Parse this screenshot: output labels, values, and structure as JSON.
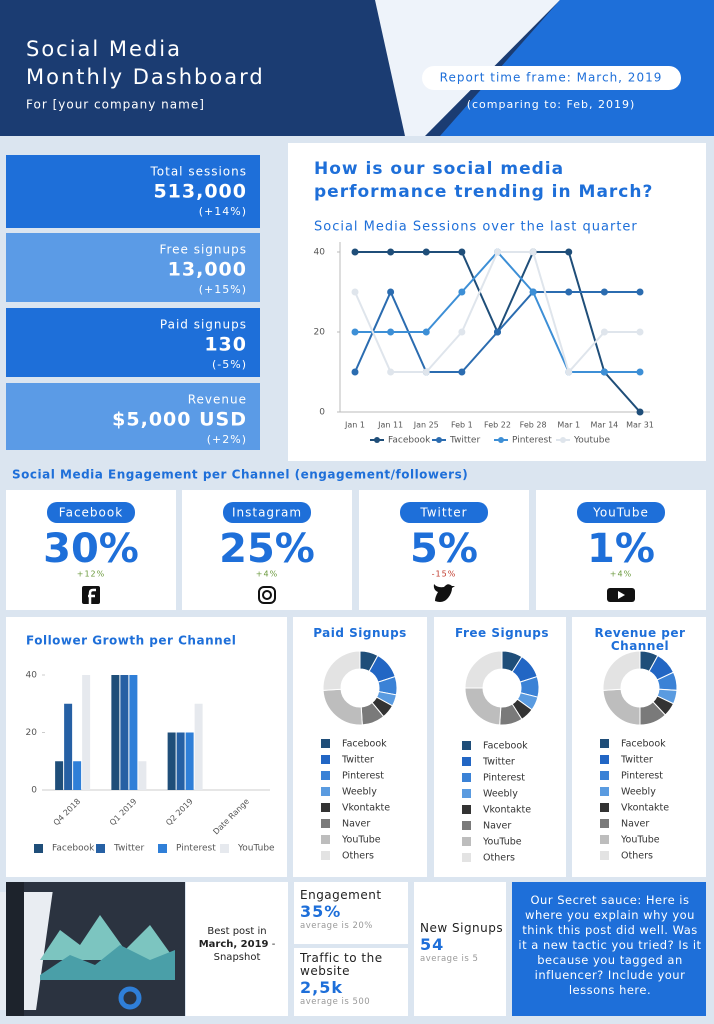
{
  "header": {
    "title_lines": [
      "Social Media",
      "Monthly Dashboard"
    ],
    "subtitle": "For [your company name]",
    "report_time_frame": "Report time frame: March, 2019",
    "comparison": "(comparing to: Feb, 2019)"
  },
  "kpis": [
    {
      "label": "Total sessions",
      "value": "513,000",
      "change": "(+14%)"
    },
    {
      "label": "Free signups",
      "value": "13,000",
      "change": "(+15%)"
    },
    {
      "label": "Paid signups",
      "value": "130",
      "change": "(-5%)"
    },
    {
      "label": "Revenue",
      "value": "$5,000 USD",
      "change": "(+2%)"
    }
  ],
  "trend_heading": "How is our social media performance trending in March?",
  "engagement": {
    "title": "Social Media Engagement per Channel (engagement/followers)",
    "channels": [
      {
        "name": "Facebook",
        "value": "30%",
        "change": "+12%",
        "change_color": "#6b9a3e"
      },
      {
        "name": "Instagram",
        "value": "25%",
        "change": "+4%",
        "change_color": "#6b9a3e"
      },
      {
        "name": "Twitter",
        "value": "5%",
        "change": "-15%",
        "change_color": "#c0392b"
      },
      {
        "name": "YouTube",
        "value": "1%",
        "change": "+4%",
        "change_color": "#6b9a3e"
      }
    ]
  },
  "chart_data": [
    {
      "type": "line",
      "title": "Social Media Sessions over the last quarter",
      "categories": [
        "Jan 1",
        "Jan 11",
        "Jan 25",
        "Feb 1",
        "Feb 22",
        "Feb 28",
        "Mar 1",
        "Mar 14",
        "Mar 31"
      ],
      "ylim": [
        0,
        40
      ],
      "yticks": [
        0,
        20,
        40
      ],
      "series": [
        {
          "name": "Facebook",
          "color": "#1f4e79",
          "values": [
            40,
            40,
            40,
            40,
            20,
            40,
            40,
            10,
            0
          ]
        },
        {
          "name": "Twitter",
          "color": "#2b6cb0",
          "values": [
            10,
            30,
            10,
            10,
            20,
            30,
            30,
            30,
            30
          ]
        },
        {
          "name": "Pinterest",
          "color": "#3d8fd6",
          "values": [
            20,
            20,
            20,
            30,
            40,
            30,
            10,
            10,
            10
          ]
        },
        {
          "name": "Youtube",
          "color": "#dfe5ec",
          "values": [
            30,
            10,
            10,
            20,
            40,
            40,
            10,
            20,
            20
          ]
        }
      ]
    },
    {
      "type": "bar",
      "title": "Follower Growth per Channel",
      "categories": [
        "Q4 2018",
        "Q1 2019",
        "Q2 2019",
        "Date Range"
      ],
      "ylim": [
        0,
        40
      ],
      "yticks": [
        0,
        20,
        40
      ],
      "series": [
        {
          "name": "Facebook",
          "color": "#1f4e79",
          "values": [
            10,
            40,
            20,
            null
          ]
        },
        {
          "name": "Twitter",
          "color": "#2660a4",
          "values": [
            30,
            40,
            20,
            null
          ]
        },
        {
          "name": "Pinterest",
          "color": "#2f7fd8",
          "values": [
            10,
            40,
            20,
            null
          ]
        },
        {
          "name": "YouTube",
          "color": "#e6e9ee",
          "values": [
            40,
            10,
            30,
            null
          ]
        }
      ]
    },
    {
      "type": "pie",
      "title": "Paid Signups",
      "categories": [
        "Facebook",
        "Twitter",
        "Pinterest",
        "Weebly",
        "Vkontakte",
        "Naver",
        "YouTube",
        "Others"
      ],
      "colors": [
        "#1f4e79",
        "#2266c4",
        "#3b82d6",
        "#5a9be0",
        "#333333",
        "#7a7a7a",
        "#bdbdbd",
        "#e3e3e3"
      ],
      "values": [
        8,
        12,
        8,
        5,
        6,
        10,
        25,
        26
      ]
    },
    {
      "type": "pie",
      "title": "Free Signups",
      "categories": [
        "Facebook",
        "Twitter",
        "Pinterest",
        "Weebly",
        "Vkontakte",
        "Naver",
        "YouTube",
        "Others"
      ],
      "colors": [
        "#1f4e79",
        "#2266c4",
        "#3b82d6",
        "#5a9be0",
        "#333333",
        "#7a7a7a",
        "#bdbdbd",
        "#e3e3e3"
      ],
      "values": [
        9,
        11,
        9,
        6,
        6,
        10,
        24,
        25
      ]
    },
    {
      "type": "pie",
      "title": "Revenue per Channel",
      "categories": [
        "Facebook",
        "Twitter",
        "Pinterest",
        "Weebly",
        "Vkontakte",
        "Naver",
        "YouTube",
        "Others"
      ],
      "colors": [
        "#1f4e79",
        "#2266c4",
        "#3b82d6",
        "#5a9be0",
        "#333333",
        "#7a7a7a",
        "#bdbdbd",
        "#e3e3e3"
      ],
      "values": [
        8,
        10,
        8,
        6,
        6,
        12,
        24,
        26
      ]
    }
  ],
  "best_post": {
    "prefix": "Best post in",
    "date": "March, 2019",
    "suffix": "- Snapshot"
  },
  "metrics": [
    {
      "label": "Engagement",
      "value": "35%",
      "note": "average is 20%"
    },
    {
      "label": "Traffic to the website",
      "value": "2,5k",
      "note": "average is 500"
    },
    {
      "label": "New Signups",
      "value": "54",
      "note": "average is 5"
    }
  ],
  "secret_sauce": "Our Secret sauce: Here is where you explain why you think this post did well. Was it a new tactic you tried? Is it because you tagged an influencer? Include your lessons here."
}
